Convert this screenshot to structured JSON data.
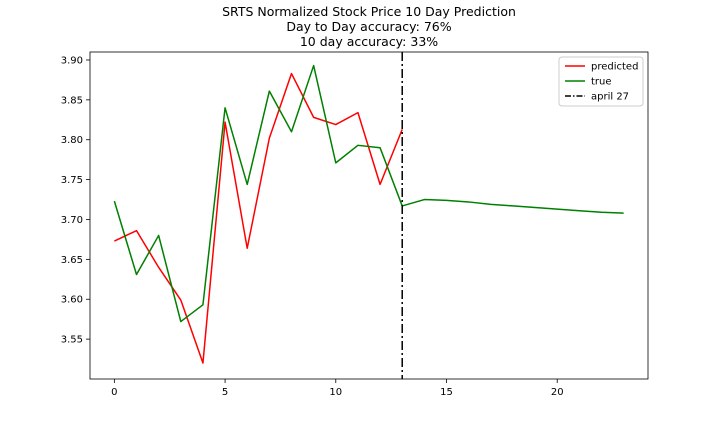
{
  "chart_data": {
    "type": "line",
    "title_lines": [
      "SRTS Normalized Stock Price 10 Day Prediction",
      "Day to Day accuracy: 76%",
      "10 day accuracy: 33%"
    ],
    "xlabel": "",
    "ylabel": "",
    "xlim": [
      -1.1,
      24.1
    ],
    "ylim": [
      3.5,
      3.91
    ],
    "x_ticks": [
      0,
      5,
      10,
      15,
      20
    ],
    "x_tick_labels": [
      "0",
      "5",
      "10",
      "15",
      "20"
    ],
    "y_ticks": [
      3.55,
      3.6,
      3.65,
      3.7,
      3.75,
      3.8,
      3.85,
      3.9
    ],
    "y_tick_labels": [
      "3.55",
      "3.60",
      "3.65",
      "3.70",
      "3.75",
      "3.80",
      "3.85",
      "3.90"
    ],
    "grid": false,
    "legend_position": "top-right",
    "series": [
      {
        "name": "predicted",
        "color": "#ff0000",
        "x": [
          0,
          1,
          2,
          3,
          4,
          5,
          6,
          7,
          8,
          9,
          10,
          11,
          12,
          13
        ],
        "y": [
          3.673,
          3.686,
          3.64,
          3.599,
          3.52,
          3.822,
          3.664,
          3.802,
          3.883,
          3.828,
          3.819,
          3.834,
          3.744,
          3.813
        ]
      },
      {
        "name": "true",
        "color": "#008000",
        "x": [
          0,
          1,
          2,
          3,
          4,
          5,
          6,
          7,
          8,
          9,
          10,
          11,
          12,
          13,
          14,
          15,
          16,
          17,
          18,
          19,
          20,
          21,
          22,
          23
        ],
        "y": [
          3.723,
          3.631,
          3.68,
          3.572,
          3.593,
          3.84,
          3.744,
          3.861,
          3.81,
          3.893,
          3.771,
          3.793,
          3.79,
          3.717,
          3.725,
          3.724,
          3.722,
          3.719,
          3.717,
          3.715,
          3.713,
          3.711,
          3.709,
          3.708
        ]
      }
    ],
    "vline": {
      "name": "april 27",
      "x": 13,
      "color": "#000000",
      "style": "dashdot"
    }
  }
}
